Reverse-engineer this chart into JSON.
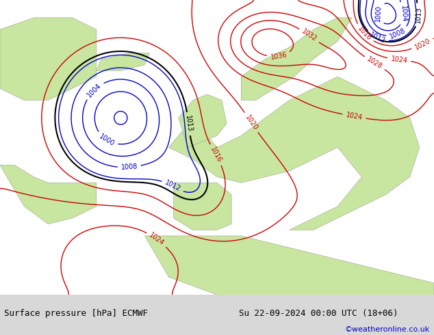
{
  "title_left": "Surface pressure [hPa] ECMWF",
  "title_right": "Su 22-09-2024 00:00 UTC (18+06)",
  "credit": "©weatheronline.co.uk",
  "background_ocean": "#e8e8e8",
  "background_land": "#c8e6a0",
  "background_land2": "#b8d890",
  "text_color_left": "#000000",
  "text_color_right": "#000000",
  "credit_color": "#0000cc",
  "bottom_bar_color": "#f0f0f0",
  "contour_color_low": "#0000cc",
  "contour_color_high": "#cc0000",
  "contour_color_thresh": "#000000",
  "figsize": [
    6.34,
    4.9
  ],
  "dpi": 100
}
